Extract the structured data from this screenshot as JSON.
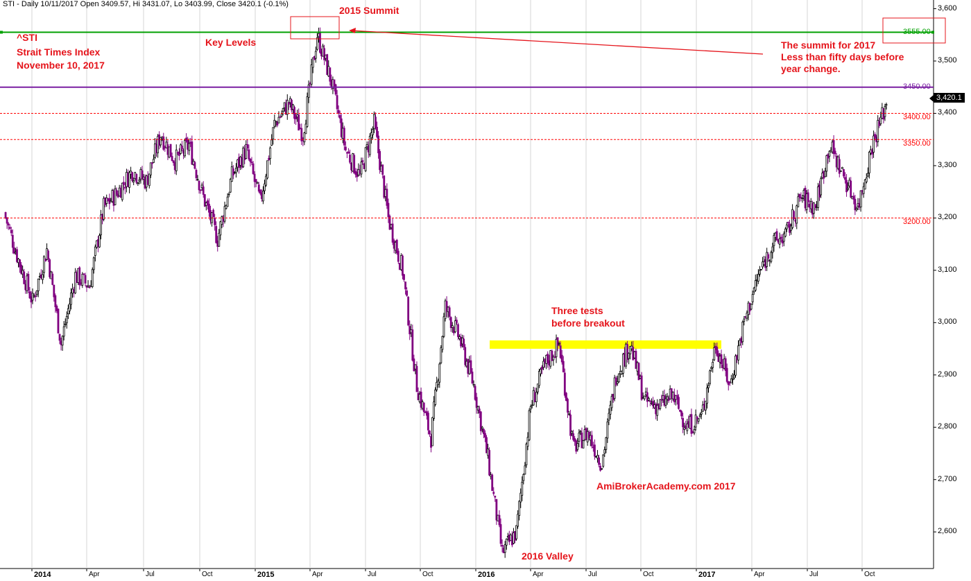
{
  "header": {
    "text": "STI - Daily 10/11/2017 Open 3409.57, Hi 3431.07, Lo 3403.99, Close 3420.1 (-0.1%)"
  },
  "annotations": {
    "symbol": "^STI",
    "index_name": "Strait Times Index",
    "date": "November 10, 2017",
    "key_levels": "Key Levels",
    "summit_2015": "2015 Summit",
    "summit_2017_line1": "The summit for 2017",
    "summit_2017_line2": "Less than fifty days before",
    "summit_2017_line3": "year change.",
    "three_tests_line1": "Three tests",
    "three_tests_line2": "before breakout",
    "valley_2016": "2016 Valley",
    "watermark": "AmiBrokerAcademy.com  2017"
  },
  "last_price_tag": "3,420.1",
  "colors": {
    "up_candle": "#000000",
    "down_candle": "#800080",
    "summit_line": "#00a000",
    "resistance_line": "#7a1fa2",
    "support_lines": "#ff0000",
    "highlight_band": "#ffff00",
    "annotation_text": "#e5141b"
  },
  "chart_data": {
    "type": "candlestick",
    "title": "STI - Daily",
    "ylim": [
      2530,
      3610
    ],
    "y_ticks": [
      "2,600",
      "2,700",
      "2,800",
      "2,900",
      "3,000",
      "3,100",
      "3,200",
      "3,300",
      "3,400",
      "3,500",
      "3,600"
    ],
    "x_ticks": [
      {
        "label": "2014",
        "year": true
      },
      {
        "label": "Apr",
        "year": false
      },
      {
        "label": "Jul",
        "year": false
      },
      {
        "label": "Oct",
        "year": false
      },
      {
        "label": "2015",
        "year": true
      },
      {
        "label": "Apr",
        "year": false
      },
      {
        "label": "Jul",
        "year": false
      },
      {
        "label": "Oct",
        "year": false
      },
      {
        "label": "2016",
        "year": true
      },
      {
        "label": "Apr",
        "year": false
      },
      {
        "label": "Jul",
        "year": false
      },
      {
        "label": "Oct",
        "year": false
      },
      {
        "label": "2017",
        "year": true
      },
      {
        "label": "Apr",
        "year": false
      },
      {
        "label": "Jul",
        "year": false
      },
      {
        "label": "Oct",
        "year": false
      }
    ],
    "horizontal_levels": [
      {
        "value": 3555,
        "label": "3555.00",
        "style": "solid",
        "color": "#00a000"
      },
      {
        "value": 3450,
        "label": "3450.00",
        "style": "solid",
        "color": "#7a1fa2"
      },
      {
        "value": 3400,
        "label": "3400.00",
        "style": "dashed",
        "color": "#ff0000"
      },
      {
        "value": 3350,
        "label": "3350.00",
        "style": "dashed",
        "color": "#ff0000"
      },
      {
        "value": 3200,
        "label": "3200.00",
        "style": "dashed",
        "color": "#ff0000"
      }
    ],
    "highlight_band": {
      "y_low": 2950,
      "y_high": 2966,
      "x_start": "2016-03",
      "x_end": "2017-02"
    },
    "last_close": 3420.1,
    "price_path": [
      {
        "t": "2013-12",
        "close": 3210
      },
      {
        "t": "2014-01",
        "close": 3120
      },
      {
        "t": "2014-01b",
        "close": 3040
      },
      {
        "t": "2014-02",
        "close": 3140
      },
      {
        "t": "2014-02b",
        "close": 2960
      },
      {
        "t": "2014-03",
        "close": 3090
      },
      {
        "t": "2014-03b",
        "close": 3070
      },
      {
        "t": "2014-04",
        "close": 3220
      },
      {
        "t": "2014-05",
        "close": 3250
      },
      {
        "t": "2014-06",
        "close": 3290
      },
      {
        "t": "2014-07",
        "close": 3270
      },
      {
        "t": "2014-08",
        "close": 3360
      },
      {
        "t": "2014-08b",
        "close": 3310
      },
      {
        "t": "2014-09",
        "close": 3340
      },
      {
        "t": "2014-10",
        "close": 3240
      },
      {
        "t": "2014-10b",
        "close": 3160
      },
      {
        "t": "2014-11",
        "close": 3280
      },
      {
        "t": "2014-12",
        "close": 3330
      },
      {
        "t": "2014-12b",
        "close": 3230
      },
      {
        "t": "2015-01",
        "close": 3380
      },
      {
        "t": "2015-02",
        "close": 3420
      },
      {
        "t": "2015-03",
        "close": 3360
      },
      {
        "t": "2015-04",
        "close": 3550
      },
      {
        "t": "2015-05",
        "close": 3460
      },
      {
        "t": "2015-06",
        "close": 3330
      },
      {
        "t": "2015-07",
        "close": 3280
      },
      {
        "t": "2015-07b",
        "close": 3380
      },
      {
        "t": "2015-08",
        "close": 3200
      },
      {
        "t": "2015-08b",
        "close": 3100
      },
      {
        "t": "2015-09",
        "close": 2880
      },
      {
        "t": "2015-09b",
        "close": 2780
      },
      {
        "t": "2015-10",
        "close": 3030
      },
      {
        "t": "2015-11",
        "close": 2970
      },
      {
        "t": "2015-12",
        "close": 2880
      },
      {
        "t": "2016-01",
        "close": 2740
      },
      {
        "t": "2016-01b",
        "close": 2560
      },
      {
        "t": "2016-02",
        "close": 2600
      },
      {
        "t": "2016-03",
        "close": 2840
      },
      {
        "t": "2016-04",
        "close": 2920
      },
      {
        "t": "2016-04b",
        "close": 2960
      },
      {
        "t": "2016-05",
        "close": 2760
      },
      {
        "t": "2016-06",
        "close": 2790
      },
      {
        "t": "2016-06b",
        "close": 2730
      },
      {
        "t": "2016-07",
        "close": 2900
      },
      {
        "t": "2016-08",
        "close": 2960
      },
      {
        "t": "2016-08b",
        "close": 2850
      },
      {
        "t": "2016-09",
        "close": 2840
      },
      {
        "t": "2016-10",
        "close": 2860
      },
      {
        "t": "2016-10b",
        "close": 2800
      },
      {
        "t": "2016-11",
        "close": 2820
      },
      {
        "t": "2016-12",
        "close": 2960
      },
      {
        "t": "2016-12b",
        "close": 2880
      },
      {
        "t": "2017-01",
        "close": 3000
      },
      {
        "t": "2017-02",
        "close": 3090
      },
      {
        "t": "2017-03",
        "close": 3150
      },
      {
        "t": "2017-04",
        "close": 3170
      },
      {
        "t": "2017-05",
        "close": 3240
      },
      {
        "t": "2017-06",
        "close": 3220
      },
      {
        "t": "2017-07",
        "close": 3340
      },
      {
        "t": "2017-08",
        "close": 3280
      },
      {
        "t": "2017-09",
        "close": 3220
      },
      {
        "t": "2017-10",
        "close": 3340
      },
      {
        "t": "2017-11",
        "close": 3420
      }
    ]
  }
}
